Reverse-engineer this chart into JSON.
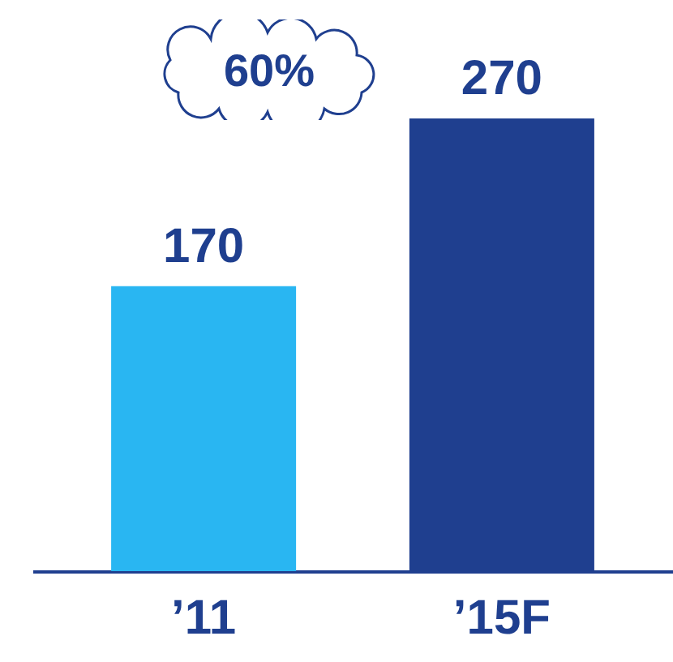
{
  "chart_data": {
    "type": "bar",
    "categories": [
      "’11",
      "’15F"
    ],
    "values": [
      170,
      270
    ],
    "colors": [
      "#29b6f2",
      "#1f3f8f"
    ],
    "data_labels": true,
    "annotations": [
      "60%"
    ]
  }
}
